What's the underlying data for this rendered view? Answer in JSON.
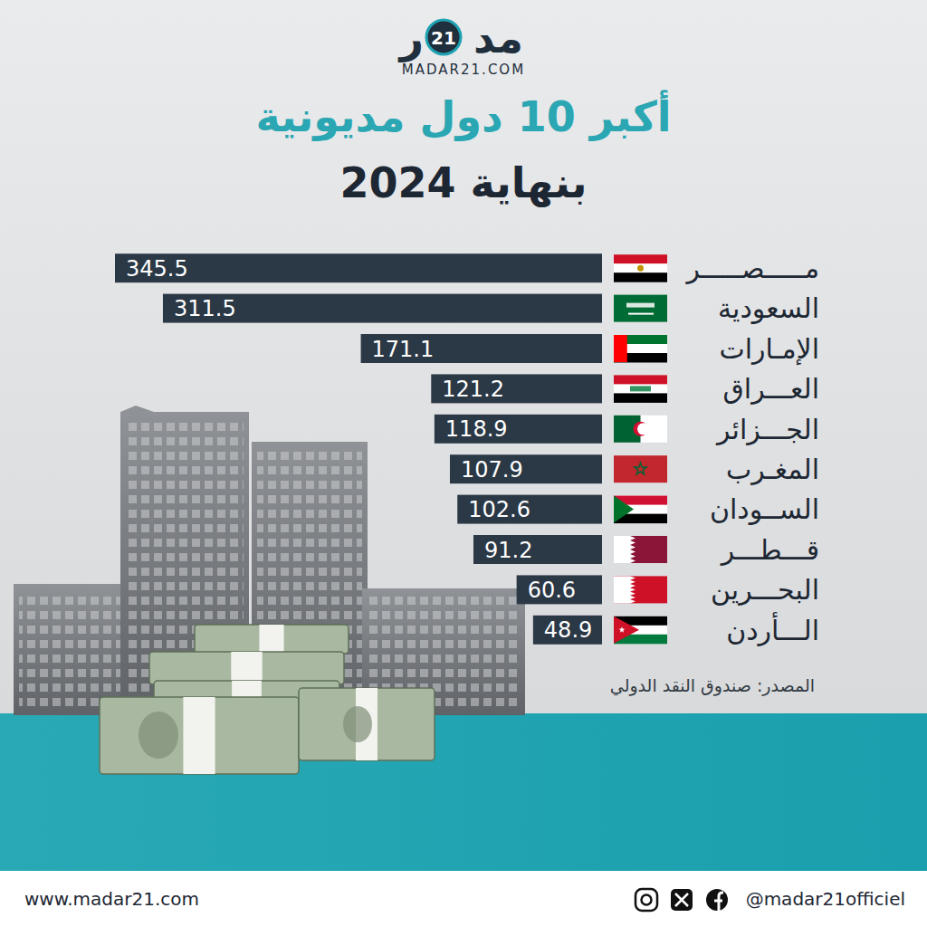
{
  "header": {
    "logo_right": "مد",
    "logo_number": "21",
    "logo_left": "ر",
    "site": "MADAR21.COM"
  },
  "chart_data": {
    "type": "bar",
    "orientation": "horizontal",
    "title": "أكبر 10 دول مديونية",
    "subtitle": "بنهاية 2024",
    "categories": [
      "مـــــصـــــر",
      "السعودية",
      "الإمـارات",
      "العـــراق",
      "الجـــزائر",
      "المغـرب",
      "الســودان",
      "قـــطـــر",
      "البحـــرين",
      "الـــأردن"
    ],
    "values": [
      345.5,
      311.5,
      171.1,
      121.2,
      118.9,
      107.9,
      102.6,
      91.2,
      60.6,
      48.9
    ],
    "color": "#2b3846",
    "data_labels": true,
    "tick_labels": "y",
    "source": "المصدر: صندوق النقد الدولي"
  },
  "footer": {
    "website": "www.madar21.com",
    "handle": "@madar21officiel"
  }
}
